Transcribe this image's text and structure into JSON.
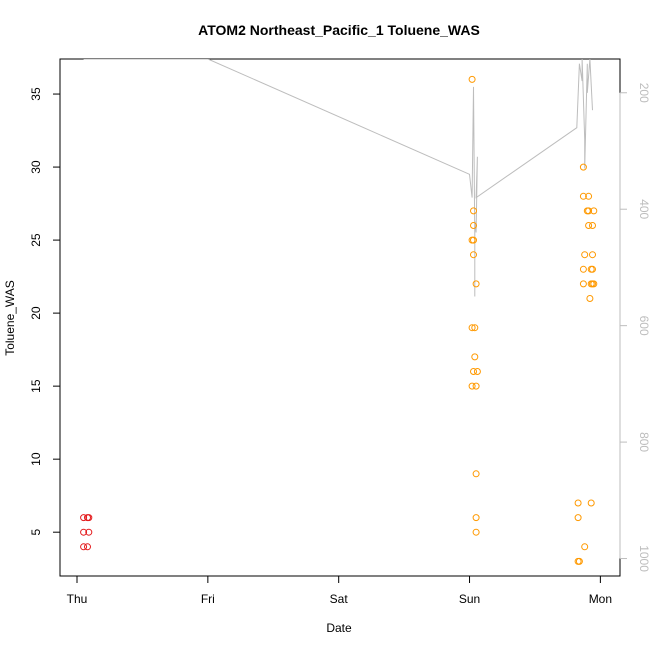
{
  "chart_data": {
    "type": "scatter",
    "title": "ATOM2 Northeast_Pacific_1 Toluene_WAS",
    "xlabel": "Date",
    "ylabel": "Toluene_WAS",
    "x_tick_labels": [
      "Thu",
      "Fri",
      "Sat",
      "Sun",
      "Mon"
    ],
    "xlim": [
      -0.13,
      4.15
    ],
    "ylim": [
      2.0,
      37.4
    ],
    "y_ticks": [
      5,
      10,
      15,
      20,
      25,
      30,
      35
    ],
    "y2_ticks": [
      200,
      400,
      600,
      800,
      1000
    ],
    "y2lim": [
      1030,
      142
    ],
    "grid": false,
    "colors": {
      "group_thu": "#e31a1c",
      "group_later": "#ff9900",
      "pressure_line": "#bdbdbd"
    },
    "series": [
      {
        "color_key": "group_thu",
        "points": [
          [
            0.05,
            6
          ],
          [
            0.08,
            6
          ],
          [
            0.09,
            6
          ],
          [
            0.05,
            5
          ],
          [
            0.09,
            5
          ],
          [
            0.05,
            4
          ],
          [
            0.08,
            4
          ]
        ]
      },
      {
        "color_key": "group_later",
        "points": [
          [
            3.02,
            36
          ],
          [
            3.03,
            27
          ],
          [
            3.03,
            26
          ],
          [
            3.02,
            25
          ],
          [
            3.03,
            25
          ],
          [
            3.03,
            24
          ],
          [
            3.05,
            22
          ],
          [
            3.02,
            19
          ],
          [
            3.04,
            19
          ],
          [
            3.04,
            17
          ],
          [
            3.03,
            16
          ],
          [
            3.06,
            16
          ],
          [
            3.02,
            15
          ],
          [
            3.05,
            15
          ],
          [
            3.05,
            9
          ],
          [
            3.05,
            6
          ],
          [
            3.05,
            5
          ],
          [
            3.87,
            30
          ],
          [
            3.87,
            28
          ],
          [
            3.91,
            28
          ],
          [
            3.9,
            27
          ],
          [
            3.91,
            27
          ],
          [
            3.95,
            27
          ],
          [
            3.91,
            26
          ],
          [
            3.94,
            26
          ],
          [
            3.88,
            24
          ],
          [
            3.94,
            24
          ],
          [
            3.87,
            23
          ],
          [
            3.93,
            23
          ],
          [
            3.94,
            23
          ],
          [
            3.87,
            22
          ],
          [
            3.93,
            22
          ],
          [
            3.94,
            22
          ],
          [
            3.95,
            22
          ],
          [
            3.92,
            21
          ],
          [
            3.83,
            7
          ],
          [
            3.93,
            7
          ],
          [
            3.83,
            6
          ],
          [
            3.88,
            4
          ],
          [
            3.83,
            3
          ],
          [
            3.84,
            3
          ]
        ]
      }
    ],
    "pressure_line": [
      [
        0.05,
        142
      ],
      [
        1.0,
        142
      ],
      [
        3.0,
        340
      ],
      [
        3.02,
        380
      ],
      [
        3.03,
        190
      ],
      [
        3.04,
        450
      ],
      [
        3.04,
        550
      ],
      [
        3.04,
        420
      ],
      [
        3.05,
        440
      ],
      [
        3.06,
        310
      ],
      [
        3.05,
        380
      ],
      [
        3.82,
        260
      ],
      [
        3.84,
        150
      ],
      [
        3.86,
        180
      ],
      [
        3.86,
        140
      ],
      [
        3.88,
        280
      ],
      [
        3.88,
        330
      ],
      [
        3.9,
        150
      ],
      [
        3.9,
        200
      ],
      [
        3.92,
        142
      ],
      [
        3.94,
        230
      ]
    ]
  }
}
